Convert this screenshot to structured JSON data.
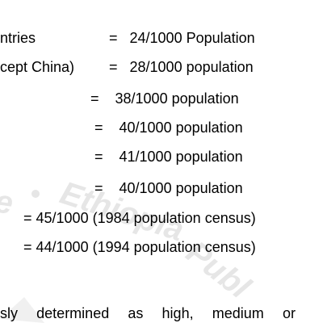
{
  "rows": [
    {
      "left": "ntries",
      "right": "=   24/1000 Population"
    },
    {
      "left": "cept China)",
      "right": "=   28/1000 population"
    },
    {
      "right": "=    38/1000 population"
    },
    {
      "right": "=    40/1000 population"
    },
    {
      "right": "=    41/1000 population"
    },
    {
      "right": "=    40/1000 population"
    },
    {
      "right": "= 45/1000 (1984 population census)"
    },
    {
      "right": "= 44/1000 (1994 population census)"
    }
  ],
  "paragraph_words": [
    "sly",
    "determined",
    "as",
    "high,",
    "medium",
    "or"
  ]
}
